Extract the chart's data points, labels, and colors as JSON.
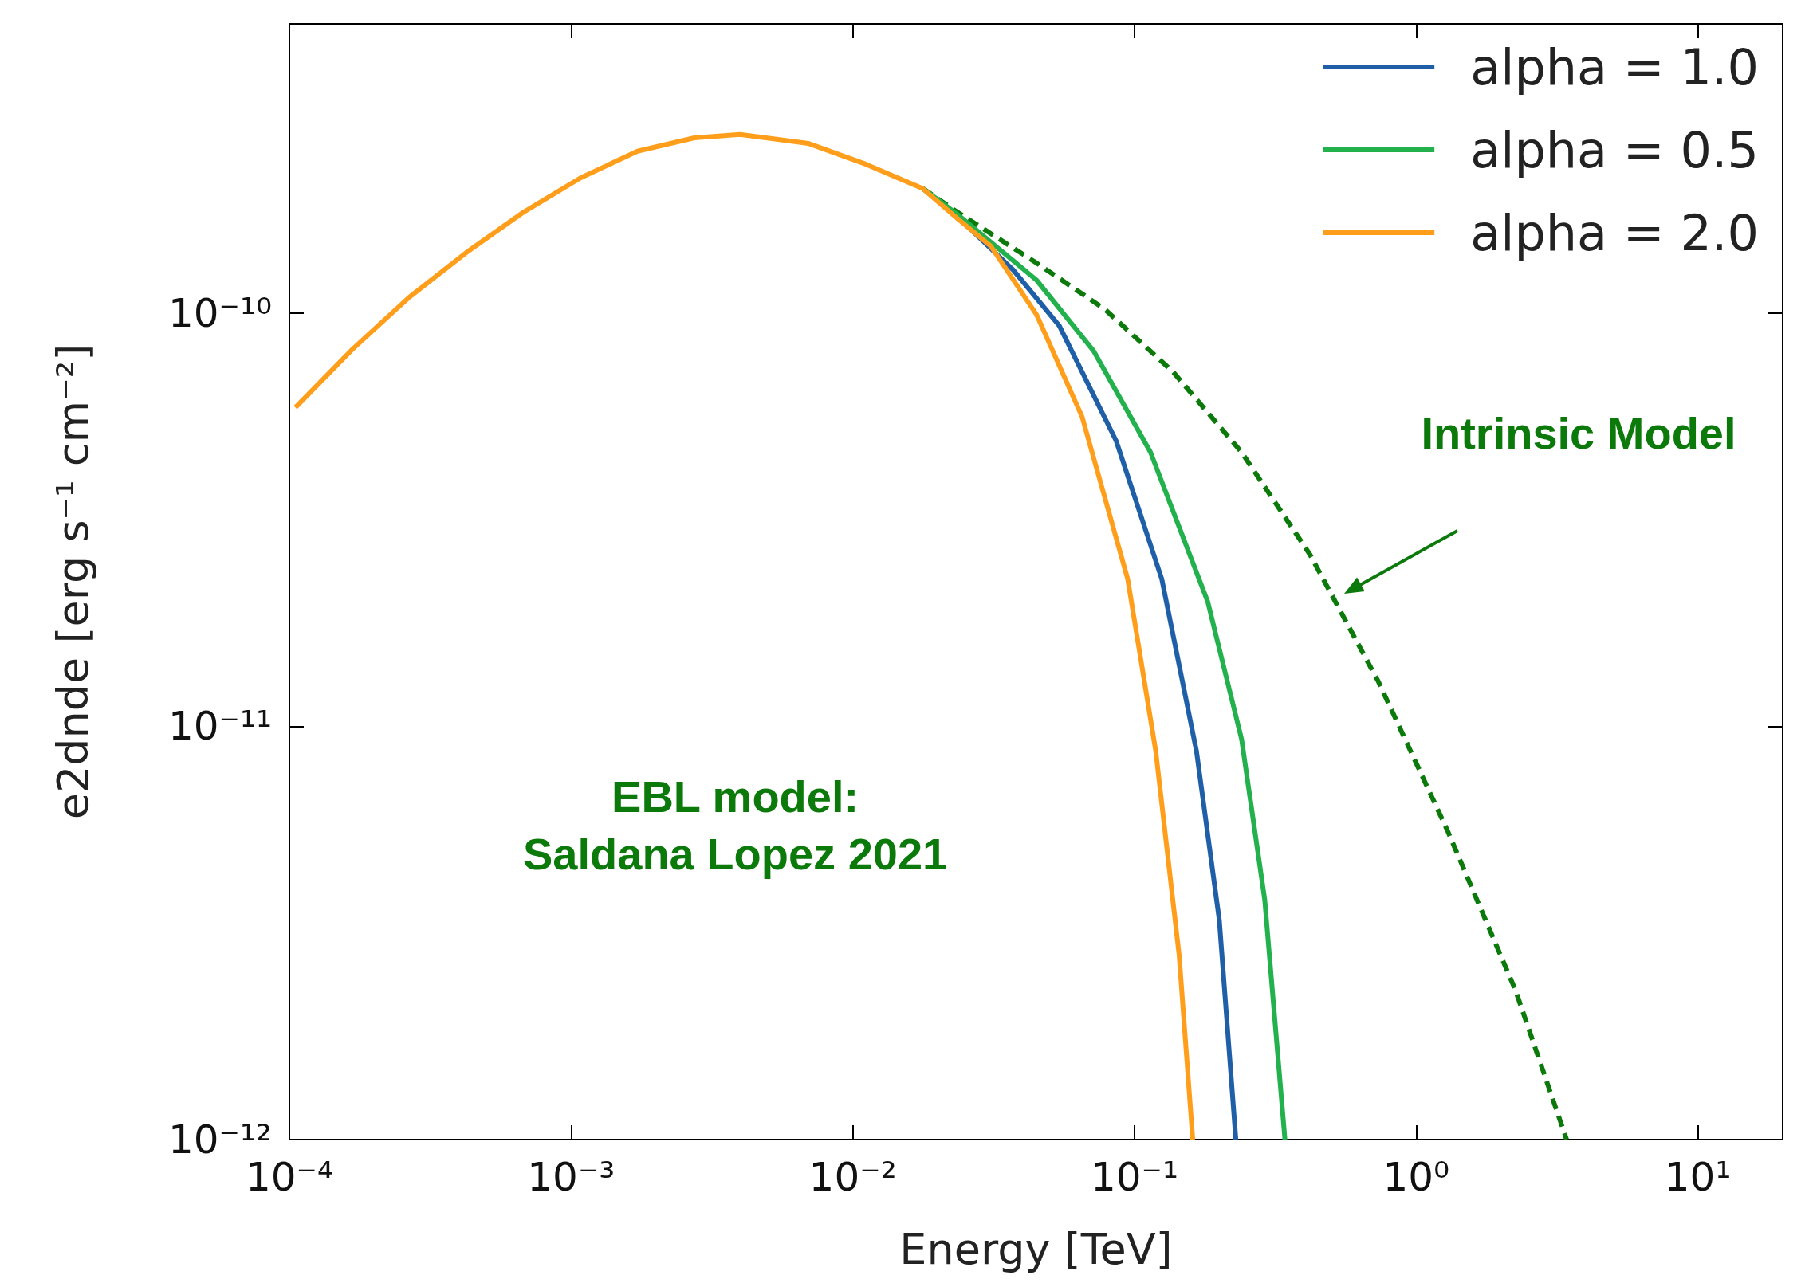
{
  "chart_data": {
    "type": "line",
    "xlabel": "Energy [TeV]",
    "ylabel": "e2dnde [erg s⁻¹ cm⁻²]",
    "log": "xy",
    "grid": false,
    "legend": "top right",
    "marker": "none",
    "xlim": [
      0.0001,
      20
    ],
    "ylim": [
      1e-12,
      5e-10
    ],
    "xticks": [
      {
        "value": 0.0001,
        "label": "10⁻⁴"
      },
      {
        "value": 0.001,
        "label": "10⁻³"
      },
      {
        "value": 0.01,
        "label": "10⁻²"
      },
      {
        "value": 0.1,
        "label": "10⁻¹"
      },
      {
        "value": 1,
        "label": "10⁰"
      },
      {
        "value": 10,
        "label": "10¹"
      }
    ],
    "yticks": [
      {
        "value": 1e-12,
        "label": "10⁻¹²"
      },
      {
        "value": 1e-11,
        "label": "10⁻¹¹"
      },
      {
        "value": 1e-10,
        "label": "10⁻¹⁰"
      }
    ],
    "series": [
      {
        "color": "#0b7a0b",
        "line_style": "dashed",
        "x": [
          0.0177,
          0.0233,
          0.0449,
          0.0785,
          0.137,
          0.24,
          0.42,
          0.735,
          1.29,
          2.25,
          3.42
        ],
        "values": [
          2e-10,
          1.76e-10,
          1.32e-10,
          1.02e-10,
          7.2e-11,
          4.6e-11,
          2.6e-11,
          1.28e-11,
          5.6e-12,
          2.3e-12,
          1e-12
        ]
      },
      {
        "name": "alpha = 1.0",
        "color": "#1f5fa8",
        "line_style": "solid",
        "x": [
          0.0177,
          0.0233,
          0.0371,
          0.0541,
          0.0861,
          0.125,
          0.166,
          0.2,
          0.229
        ],
        "values": [
          2e-10,
          1.72e-10,
          1.27e-10,
          9.3e-11,
          4.9e-11,
          2.27e-11,
          8.7e-12,
          3.4e-12,
          1e-12
        ]
      },
      {
        "name": "alpha = 0.5",
        "color": "#22b14c",
        "line_style": "solid",
        "x": [
          0.0177,
          0.0233,
          0.0449,
          0.0715,
          0.114,
          0.182,
          0.24,
          0.29,
          0.342
        ],
        "values": [
          2e-10,
          1.74e-10,
          1.2e-10,
          8.1e-11,
          4.6e-11,
          2e-11,
          9.3e-12,
          3.8e-12,
          1e-12
        ]
      },
      {
        "name": "alpha = 2.0",
        "color": "#ff9e1b",
        "line_style": "solid",
        "x": [
          0.000105,
          0.000167,
          0.000266,
          0.000425,
          0.000676,
          0.00108,
          0.00172,
          0.00274,
          0.00398,
          0.00695,
          0.0111,
          0.0177,
          0.0233,
          0.0309,
          0.0449,
          0.0652,
          0.0946,
          0.119,
          0.144,
          0.161
        ],
        "values": [
          5.9e-11,
          8.15e-11,
          1.09e-10,
          1.4e-10,
          1.75e-10,
          2.12e-10,
          2.46e-10,
          2.65e-10,
          2.7e-10,
          2.57e-10,
          2.29e-10,
          2e-10,
          1.7e-10,
          1.45e-10,
          9.9e-11,
          5.6e-11,
          2.27e-11,
          8.7e-12,
          2.8e-12,
          1e-12
        ]
      }
    ],
    "annotations": [
      "Intrinsic Model",
      "EBL model:\nSaldana Lopez 2021"
    ]
  }
}
